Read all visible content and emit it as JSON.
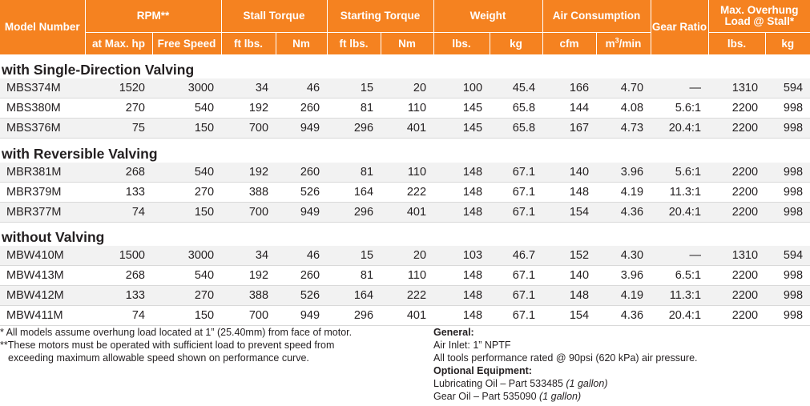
{
  "header": {
    "model_number": "Model Number",
    "rpm": "RPM**",
    "rpm_max_hp": "at Max. hp",
    "rpm_free_speed": "Free Speed",
    "stall_torque": "Stall Torque",
    "stall_ftlbs": "ft lbs.",
    "stall_nm": "Nm",
    "starting_torque": "Starting Torque",
    "start_ftlbs": "ft lbs.",
    "start_nm": "Nm",
    "weight": "Weight",
    "weight_lbs": "lbs.",
    "weight_kg": "kg",
    "air_consumption": "Air Consumption",
    "air_cfm": "cfm",
    "air_m3_base": "m",
    "air_m3_sup": "3",
    "air_m3_tail": "/min",
    "gear_ratio": "Gear Ratio",
    "overhung_load": "Max. Overhung Load @ Stall*",
    "overhung_lbs": "lbs.",
    "overhung_kg": "kg"
  },
  "sections": [
    {
      "title": "with Single-Direction Valving",
      "rows": [
        [
          "MBS374M",
          "1520",
          "3000",
          "34",
          "46",
          "15",
          "20",
          "100",
          "45.4",
          "166",
          "4.70",
          "—",
          "1310",
          "594"
        ],
        [
          "MBS380M",
          "270",
          "540",
          "192",
          "260",
          "81",
          "110",
          "145",
          "65.8",
          "144",
          "4.08",
          "5.6:1",
          "2200",
          "998"
        ],
        [
          "MBS376M",
          "75",
          "150",
          "700",
          "949",
          "296",
          "401",
          "145",
          "65.8",
          "167",
          "4.73",
          "20.4:1",
          "2200",
          "998"
        ]
      ]
    },
    {
      "title": "with Reversible Valving",
      "rows": [
        [
          "MBR381M",
          "268",
          "540",
          "192",
          "260",
          "81",
          "110",
          "148",
          "67.1",
          "140",
          "3.96",
          "5.6:1",
          "2200",
          "998"
        ],
        [
          "MBR379M",
          "133",
          "270",
          "388",
          "526",
          "164",
          "222",
          "148",
          "67.1",
          "148",
          "4.19",
          "11.3:1",
          "2200",
          "998"
        ],
        [
          "MBR377M",
          "74",
          "150",
          "700",
          "949",
          "296",
          "401",
          "148",
          "67.1",
          "154",
          "4.36",
          "20.4:1",
          "2200",
          "998"
        ]
      ]
    },
    {
      "title": "without Valving",
      "rows": [
        [
          "MBW410M",
          "1500",
          "3000",
          "34",
          "46",
          "15",
          "20",
          "103",
          "46.7",
          "152",
          "4.30",
          "—",
          "1310",
          "594"
        ],
        [
          "MBW413M",
          "268",
          "540",
          "192",
          "260",
          "81",
          "110",
          "148",
          "67.1",
          "140",
          "3.96",
          "6.5:1",
          "2200",
          "998"
        ],
        [
          "MBW412M",
          "133",
          "270",
          "388",
          "526",
          "164",
          "222",
          "148",
          "67.1",
          "148",
          "4.19",
          "11.3:1",
          "2200",
          "998"
        ],
        [
          "MBW411M",
          "74",
          "150",
          "700",
          "949",
          "296",
          "401",
          "148",
          "67.1",
          "154",
          "4.36",
          "20.4:1",
          "2200",
          "998"
        ]
      ]
    }
  ],
  "footnotes": {
    "note1": "* All models assume overhung load located at 1” (25.40mm) from face of motor.",
    "note2_line1": "**These motors must be operated with sufficient load to prevent speed from",
    "note2_line2": "exceeding maximum allowable speed shown on performance curve."
  },
  "general": {
    "heading": "General:",
    "air_inlet": "Air Inlet: 1” NPTF",
    "performance": "All tools performance rated @ 90psi (620 kPa) air pressure.",
    "optional_heading": "Optional Equipment:",
    "lube_text": "Lubricating Oil – Part 533485 ",
    "lube_qty": "(1 gallon)",
    "gear_text": "Gear Oil – Part 535090 ",
    "gear_qty": "(1 gallon)"
  },
  "colors": {
    "header_bg": "#f58220",
    "header_text": "#ffffff",
    "zebra": "#f2f2f2"
  }
}
